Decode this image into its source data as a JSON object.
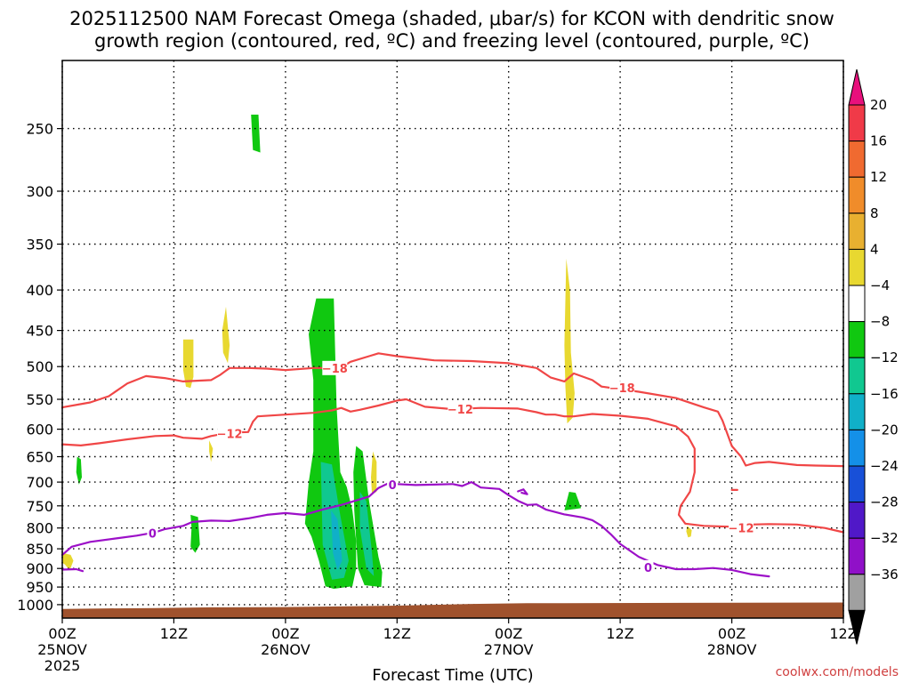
{
  "chart_data": {
    "type": "time-height cross-section",
    "title_line1": "2025112500 NAM Forecast Omega (shaded, μbar/s) for KCON with dendritic snow",
    "title_line2": "growth region (contoured, red, ºC) and freezing level (contoured, purple, ºC)",
    "xlabel": "Forecast Time (UTC)",
    "x_range_hours": [
      0,
      84
    ],
    "y_range_hpa": [
      1040,
      205
    ],
    "y_ticks": [
      250,
      300,
      350,
      400,
      450,
      500,
      550,
      600,
      650,
      700,
      750,
      800,
      850,
      900,
      950,
      1000
    ],
    "x_ticks": [
      {
        "h": 0,
        "l1": "00Z",
        "l2": "25NOV",
        "l3": "2025"
      },
      {
        "h": 12,
        "l1": "12Z",
        "l2": "",
        "l3": ""
      },
      {
        "h": 24,
        "l1": "00Z",
        "l2": "26NOV",
        "l3": ""
      },
      {
        "h": 36,
        "l1": "12Z",
        "l2": "",
        "l3": ""
      },
      {
        "h": 48,
        "l1": "00Z",
        "l2": "27NOV",
        "l3": ""
      },
      {
        "h": 60,
        "l1": "12Z",
        "l2": "",
        "l3": ""
      },
      {
        "h": 72,
        "l1": "00Z",
        "l2": "28NOV",
        "l3": ""
      },
      {
        "h": 84,
        "l1": "12Z",
        "l2": "",
        "l3": ""
      }
    ],
    "colorbar": {
      "labels": [
        "20",
        "16",
        "12",
        "8",
        "4",
        "−4",
        "−8",
        "−12",
        "−16",
        "−20",
        "−24",
        "−28",
        "−32",
        "−36"
      ],
      "colors": [
        "#f03a48",
        "#f06a30",
        "#f08c2a",
        "#e8b030",
        "#e8d830",
        "#ffffff",
        "#10c810",
        "#10c890",
        "#10b0c8",
        "#1490e8",
        "#1850d8",
        "#5018c8",
        "#9010c8",
        "#a0a0a0"
      ],
      "top_arrow_color": "#e8107c",
      "bottom_arrow_color": "#000000"
    },
    "terrain": {
      "color": "#a0522d",
      "surface": [
        [
          0,
          1013
        ],
        [
          5,
          1011
        ],
        [
          10,
          1010
        ],
        [
          16,
          1008
        ],
        [
          24,
          1007
        ],
        [
          36,
          1003
        ],
        [
          44,
          998
        ],
        [
          50,
          996
        ],
        [
          84,
          994
        ]
      ]
    },
    "shaded_regions": [
      {
        "color": "#10c810",
        "pts": [
          [
            20.3,
            240
          ],
          [
            21.1,
            240
          ],
          [
            21.3,
            268
          ],
          [
            20.5,
            266
          ]
        ]
      },
      {
        "color": "#10c810",
        "pts": [
          [
            1.6,
            650
          ],
          [
            2.0,
            655
          ],
          [
            2.1,
            690
          ],
          [
            1.8,
            705
          ],
          [
            1.5,
            680
          ]
        ]
      },
      {
        "color": "#10c810",
        "pts": [
          [
            13.8,
            770
          ],
          [
            14.6,
            775
          ],
          [
            14.8,
            840
          ],
          [
            14.3,
            860
          ],
          [
            13.8,
            845
          ],
          [
            13.9,
            800
          ]
        ]
      },
      {
        "color": "#10c810",
        "pts": [
          [
            26.5,
            455
          ],
          [
            27.3,
            410
          ],
          [
            29.2,
            410
          ],
          [
            29.5,
            560
          ],
          [
            29.9,
            680
          ],
          [
            30.6,
            710
          ],
          [
            31.2,
            760
          ],
          [
            31.6,
            830
          ],
          [
            31.6,
            900
          ],
          [
            31.2,
            948
          ],
          [
            29.2,
            955
          ],
          [
            28.3,
            948
          ],
          [
            27.6,
            880
          ],
          [
            26.8,
            820
          ],
          [
            26.1,
            790
          ],
          [
            26.5,
            700
          ],
          [
            27.0,
            640
          ],
          [
            27.0,
            520
          ]
        ]
      },
      {
        "color": "#10c810",
        "pts": [
          [
            31.6,
            630
          ],
          [
            32.3,
            640
          ],
          [
            33.0,
            740
          ],
          [
            34.0,
            870
          ],
          [
            34.4,
            910
          ],
          [
            34.3,
            950
          ],
          [
            32.5,
            945
          ],
          [
            31.8,
            900
          ],
          [
            31.4,
            760
          ],
          [
            31.3,
            680
          ]
        ]
      },
      {
        "color": "#10c810",
        "pts": [
          [
            54.5,
            720
          ],
          [
            55.2,
            722
          ],
          [
            55.8,
            755
          ],
          [
            54.0,
            760
          ]
        ]
      },
      {
        "color": "#10c890",
        "pts": [
          [
            27.8,
            660
          ],
          [
            29.0,
            665
          ],
          [
            29.8,
            760
          ],
          [
            30.8,
            880
          ],
          [
            30.3,
            925
          ],
          [
            29.0,
            930
          ],
          [
            28.0,
            840
          ]
        ]
      },
      {
        "color": "#10c890",
        "pts": [
          [
            32.0,
            720
          ],
          [
            32.7,
            740
          ],
          [
            33.3,
            860
          ],
          [
            33.5,
            920
          ],
          [
            32.7,
            900
          ],
          [
            32.0,
            800
          ]
        ]
      },
      {
        "color": "#10b0c8",
        "pts": [
          [
            28.9,
            760
          ],
          [
            29.6,
            780
          ],
          [
            30.1,
            880
          ],
          [
            29.6,
            905
          ],
          [
            29.1,
            860
          ]
        ]
      },
      {
        "color": "#e8d830",
        "pts": [
          [
            13.0,
            462
          ],
          [
            14.1,
            462
          ],
          [
            14.1,
            515
          ],
          [
            13.8,
            532
          ],
          [
            13.3,
            530
          ],
          [
            13.0,
            505
          ]
        ]
      },
      {
        "color": "#e8d830",
        "pts": [
          [
            17.6,
            420
          ],
          [
            18.0,
            470
          ],
          [
            17.8,
            495
          ],
          [
            17.3,
            480
          ],
          [
            17.2,
            450
          ]
        ]
      },
      {
        "color": "#e8d830",
        "pts": [
          [
            15.8,
            620
          ],
          [
            16.2,
            635
          ],
          [
            16.0,
            660
          ],
          [
            15.8,
            640
          ]
        ]
      },
      {
        "color": "#e8d830",
        "pts": [
          [
            33.4,
            640
          ],
          [
            33.8,
            660
          ],
          [
            33.8,
            720
          ],
          [
            33.3,
            725
          ],
          [
            33.2,
            690
          ]
        ]
      },
      {
        "color": "#e8d830",
        "pts": [
          [
            54.2,
            365
          ],
          [
            54.6,
            400
          ],
          [
            54.7,
            480
          ],
          [
            55.1,
            540
          ],
          [
            54.9,
            580
          ],
          [
            54.3,
            590
          ],
          [
            54.1,
            530
          ],
          [
            54.0,
            470
          ]
        ]
      },
      {
        "color": "#e8d830",
        "pts": [
          [
            0.0,
            860
          ],
          [
            0.9,
            865
          ],
          [
            1.2,
            880
          ],
          [
            0.8,
            905
          ],
          [
            0.3,
            890
          ],
          [
            0.0,
            885
          ]
        ]
      },
      {
        "color": "#e8d830",
        "pts": [
          [
            67.2,
            795
          ],
          [
            67.7,
            805
          ],
          [
            67.6,
            820
          ],
          [
            67.3,
            822
          ],
          [
            67.1,
            808
          ]
        ]
      }
    ],
    "contours": [
      {
        "level": -18,
        "color": "#f04646",
        "label": "−18",
        "pts": [
          [
            0,
            563
          ],
          [
            3,
            555
          ],
          [
            5,
            545
          ],
          [
            7,
            525
          ],
          [
            9,
            514
          ],
          [
            11,
            517
          ],
          [
            13,
            522
          ],
          [
            16,
            520
          ],
          [
            17,
            512
          ],
          [
            18,
            502
          ],
          [
            20,
            502
          ],
          [
            22,
            503
          ],
          [
            24,
            505
          ],
          [
            27,
            502
          ],
          [
            29,
            502
          ],
          [
            30,
            501
          ],
          [
            31,
            493
          ],
          [
            33,
            485
          ],
          [
            34,
            481
          ],
          [
            36,
            485
          ],
          [
            40,
            491
          ],
          [
            44,
            492
          ],
          [
            48,
            495
          ],
          [
            51,
            502
          ],
          [
            52.5,
            516
          ],
          [
            54,
            522
          ],
          [
            55,
            510
          ],
          [
            57,
            520
          ],
          [
            58,
            530
          ],
          [
            62,
            538
          ],
          [
            66,
            548
          ],
          [
            69,
            563
          ],
          [
            70.5,
            570
          ],
          [
            71,
            585
          ],
          [
            72,
            630
          ],
          [
            73,
            650
          ],
          [
            73.5,
            667
          ],
          [
            74.5,
            662
          ],
          [
            76,
            660
          ],
          [
            79,
            666
          ],
          [
            81,
            667
          ],
          [
            84,
            668
          ]
        ]
      },
      {
        "level": -12,
        "color": "#f04646",
        "label": "−12",
        "pts": [
          [
            0,
            627
          ],
          [
            2,
            629
          ],
          [
            4,
            625
          ],
          [
            7,
            618
          ],
          [
            10,
            612
          ],
          [
            12,
            611
          ],
          [
            13,
            615
          ],
          [
            15,
            617
          ],
          [
            16,
            612
          ],
          [
            18,
            606
          ],
          [
            20,
            605
          ],
          [
            20.5,
            587
          ],
          [
            21,
            578
          ],
          [
            24,
            575
          ],
          [
            27,
            572
          ],
          [
            29,
            568
          ],
          [
            30,
            564
          ],
          [
            31,
            570
          ],
          [
            32,
            567
          ],
          [
            34,
            560
          ],
          [
            36,
            552
          ],
          [
            37,
            550
          ],
          [
            39,
            562
          ],
          [
            42,
            566
          ],
          [
            45,
            564
          ],
          [
            49,
            565
          ],
          [
            51,
            571
          ],
          [
            52,
            575
          ],
          [
            53,
            575
          ],
          [
            54,
            578
          ],
          [
            55,
            578
          ],
          [
            57,
            574
          ],
          [
            60,
            577
          ],
          [
            63,
            582
          ],
          [
            66,
            595
          ],
          [
            67.3,
            613
          ],
          [
            68,
            635
          ],
          [
            68,
            680
          ],
          [
            67.5,
            720
          ],
          [
            66.5,
            750
          ],
          [
            66.3,
            770
          ],
          [
            67,
            790
          ],
          [
            69,
            795
          ],
          [
            72,
            797
          ],
          [
            74,
            792
          ],
          [
            76,
            791
          ],
          [
            79,
            792
          ],
          [
            82,
            800
          ],
          [
            84,
            810
          ]
        ]
      },
      {
        "level": 0,
        "color": "#9c10c8",
        "label": "0",
        "pts": [
          [
            0,
            865
          ],
          [
            1,
            845
          ],
          [
            3,
            833
          ],
          [
            6,
            824
          ],
          [
            8,
            818
          ],
          [
            9,
            814
          ],
          [
            10,
            810
          ],
          [
            11,
            803
          ],
          [
            13,
            795
          ],
          [
            14,
            786
          ],
          [
            16,
            783
          ],
          [
            18,
            784
          ],
          [
            20,
            778
          ],
          [
            22,
            770
          ],
          [
            24,
            766
          ],
          [
            26,
            770
          ],
          [
            28,
            758
          ],
          [
            30,
            748
          ],
          [
            33,
            730
          ],
          [
            34,
            712
          ],
          [
            35,
            703
          ],
          [
            36,
            704
          ],
          [
            38,
            706
          ],
          [
            40,
            705
          ],
          [
            42,
            704
          ],
          [
            43,
            708
          ],
          [
            44,
            700
          ],
          [
            45,
            711
          ],
          [
            47,
            714
          ],
          [
            48,
            727
          ],
          [
            49,
            739
          ],
          [
            50,
            748
          ],
          [
            51,
            747
          ],
          [
            52,
            758
          ],
          [
            54,
            769
          ],
          [
            56,
            776
          ],
          [
            57,
            782
          ],
          [
            58,
            795
          ],
          [
            59,
            815
          ],
          [
            60,
            838
          ],
          [
            62,
            870
          ],
          [
            64,
            891
          ],
          [
            66,
            902
          ],
          [
            68,
            902
          ],
          [
            70,
            899
          ],
          [
            72,
            904
          ],
          [
            74,
            915
          ],
          [
            76,
            921
          ]
        ]
      },
      {
        "level": 0,
        "color": "#9c10c8",
        "label": "",
        "pts": [
          [
            0,
            903
          ],
          [
            1.5,
            902
          ],
          [
            2.2,
            907
          ]
        ]
      },
      {
        "level": 0,
        "color": "#9c10c8",
        "label": "",
        "pts": [
          [
            49,
            719
          ],
          [
            49.6,
            715
          ],
          [
            50,
            725
          ],
          [
            49.4,
            722
          ]
        ]
      },
      {
        "level": -12,
        "color": "#f04646",
        "label": "",
        "pts": [
          [
            72,
            716
          ],
          [
            72.6,
            716
          ]
        ]
      }
    ],
    "contour_labels": [
      {
        "text": "−18",
        "color": "#f04646",
        "h": 29.3,
        "p": 502
      },
      {
        "text": "−18",
        "color": "#f04646",
        "h": 60.2,
        "p": 532
      },
      {
        "text": "−12",
        "color": "#f04646",
        "h": 42.8,
        "p": 566
      },
      {
        "text": "−12",
        "color": "#f04646",
        "h": 18.0,
        "p": 608
      },
      {
        "text": "−12",
        "color": "#f04646",
        "h": 73.0,
        "p": 800
      },
      {
        "text": "0",
        "color": "#9c10c8",
        "h": 9.7,
        "p": 812
      },
      {
        "text": "0",
        "color": "#9c10c8",
        "h": 35.5,
        "p": 705
      },
      {
        "text": "0",
        "color": "#9c10c8",
        "h": 63.0,
        "p": 897
      }
    ],
    "credit": "coolwx.com/models"
  }
}
